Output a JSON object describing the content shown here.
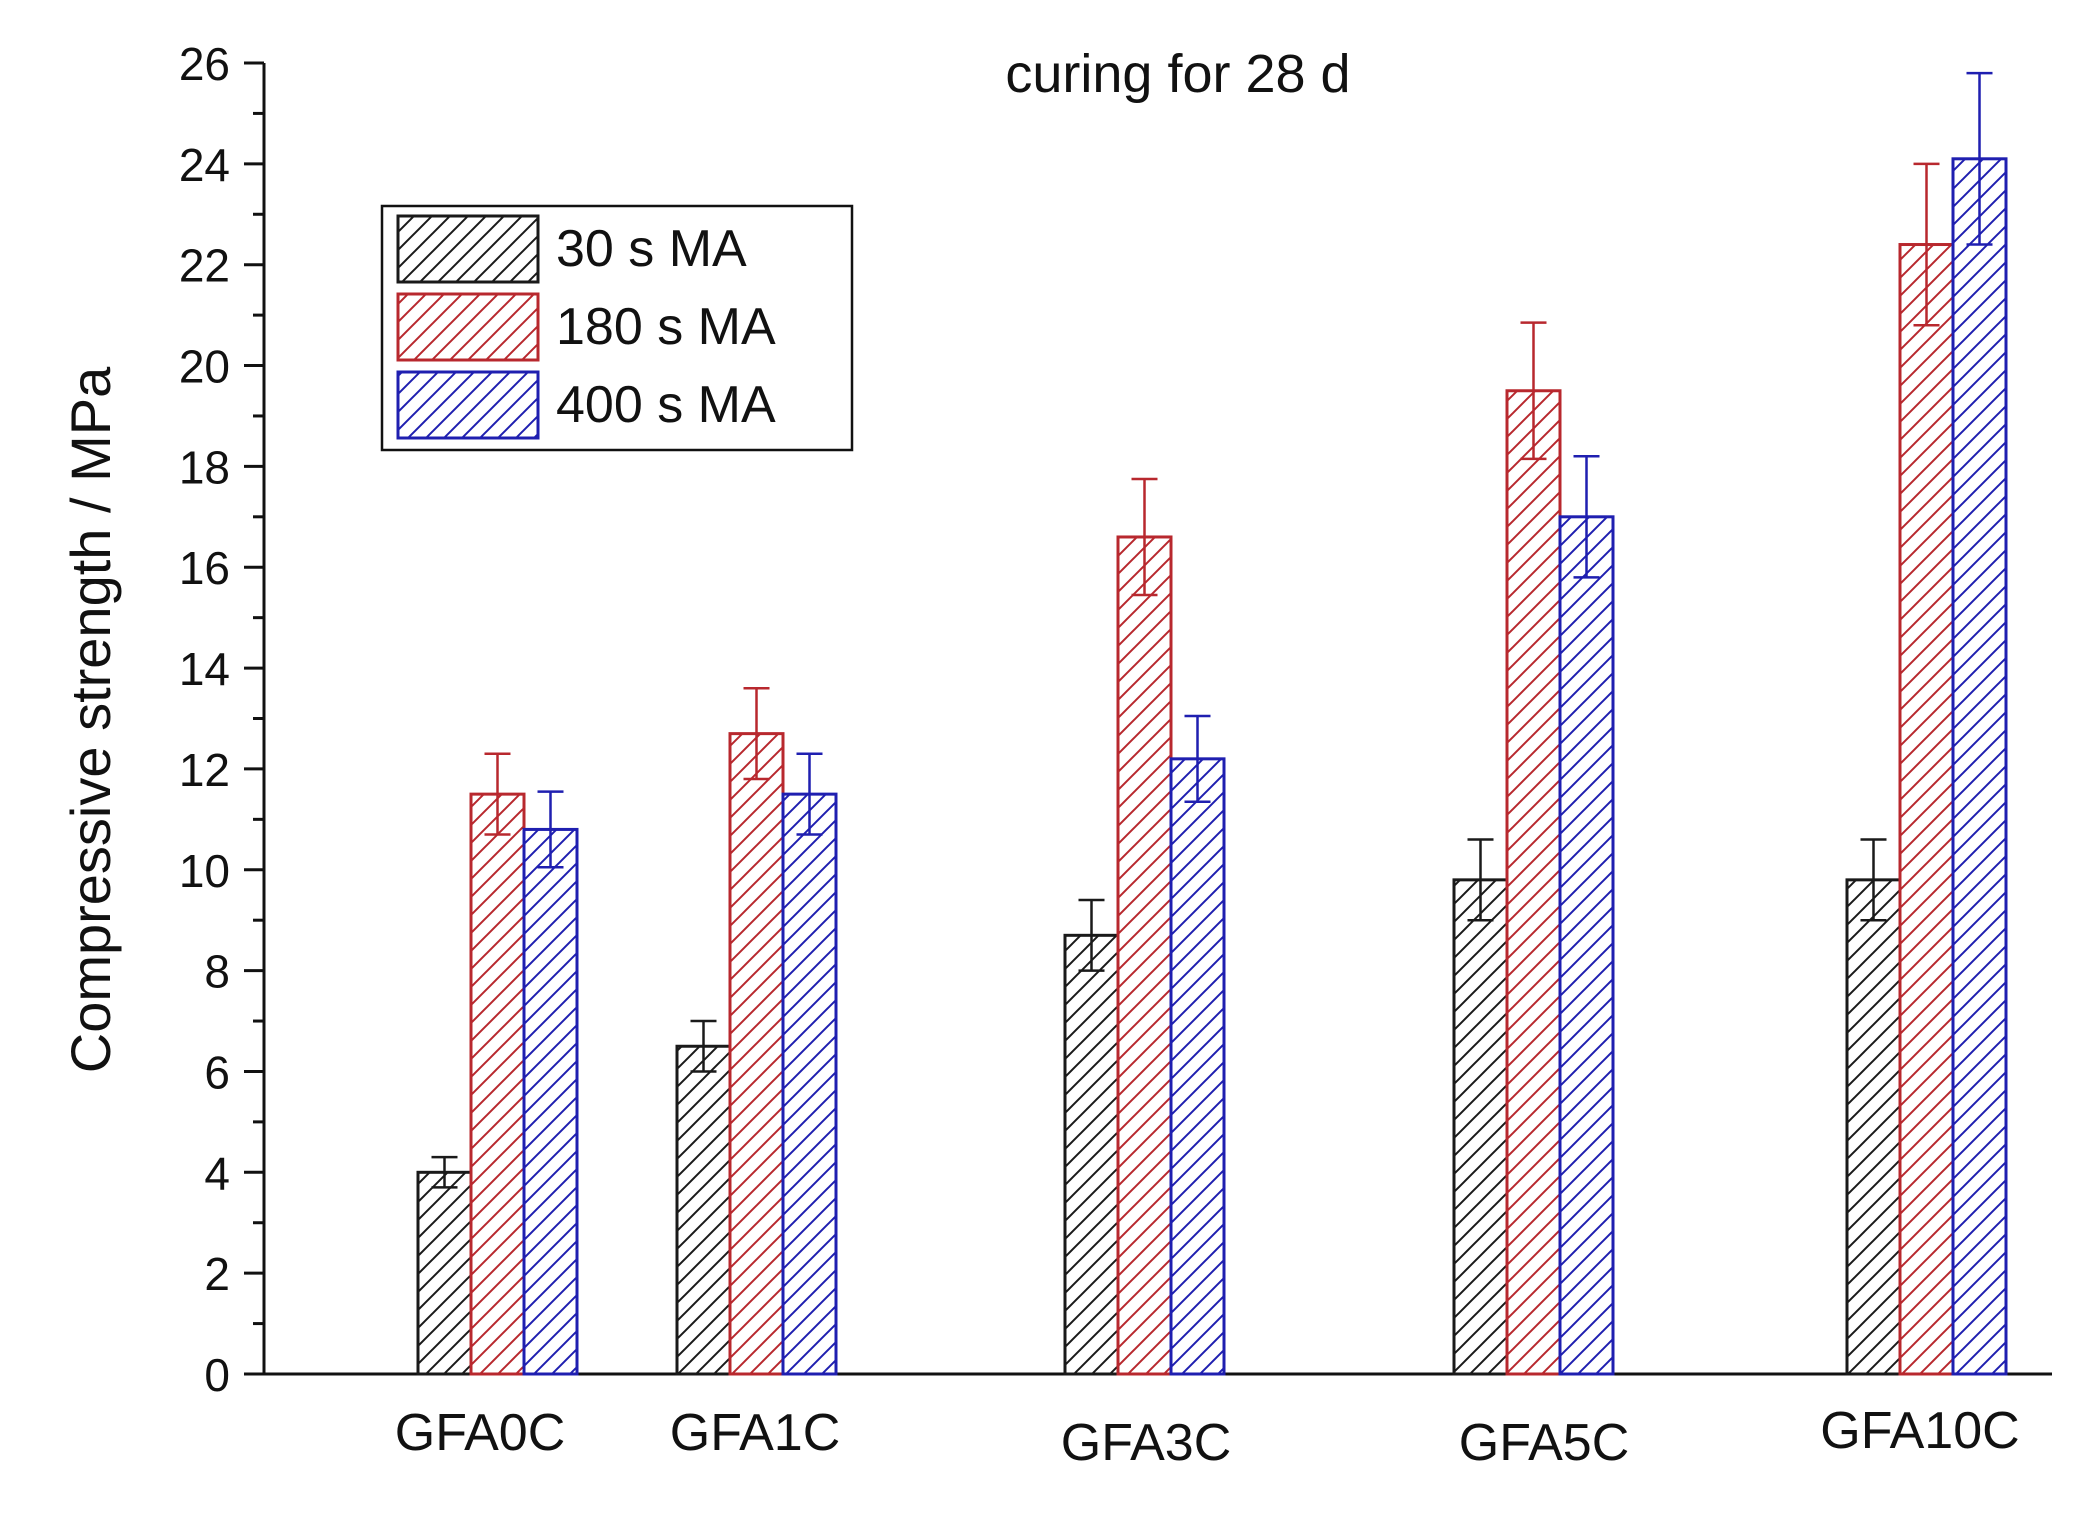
{
  "chart_data": {
    "type": "bar",
    "title": "curing for 28 d",
    "xlabel": "",
    "ylabel": "Compressive strength / MPa",
    "ylim": [
      0,
      26
    ],
    "yticks": [
      0,
      2,
      4,
      6,
      8,
      10,
      12,
      14,
      16,
      18,
      20,
      22,
      24,
      26
    ],
    "ytick_labels": [
      "0",
      "2",
      "4",
      "6",
      "8",
      "10",
      "12",
      "14",
      "16",
      "18",
      "20",
      "22",
      "24",
      "26"
    ],
    "grid": false,
    "legend_position": "top-left",
    "categories": [
      "GFA0C",
      "GFA1C",
      "GFA3C",
      "GFA5C",
      "GFA10C"
    ],
    "series": [
      {
        "name": "30 s MA",
        "color": "#1a1a1a",
        "values": [
          4.0,
          6.5,
          8.7,
          9.8,
          9.8
        ],
        "errors": [
          0.3,
          0.5,
          0.7,
          0.8,
          0.8
        ]
      },
      {
        "name": "180 s MA",
        "color": "#b8282e",
        "values": [
          11.5,
          12.7,
          16.6,
          19.5,
          22.4
        ],
        "errors": [
          0.8,
          0.9,
          1.15,
          1.35,
          1.6
        ]
      },
      {
        "name": "400 s MA",
        "color": "#1f1fb0",
        "values": [
          10.8,
          11.5,
          12.2,
          17.0,
          24.1
        ],
        "errors": [
          0.75,
          0.8,
          0.85,
          1.2,
          1.7
        ]
      }
    ]
  }
}
